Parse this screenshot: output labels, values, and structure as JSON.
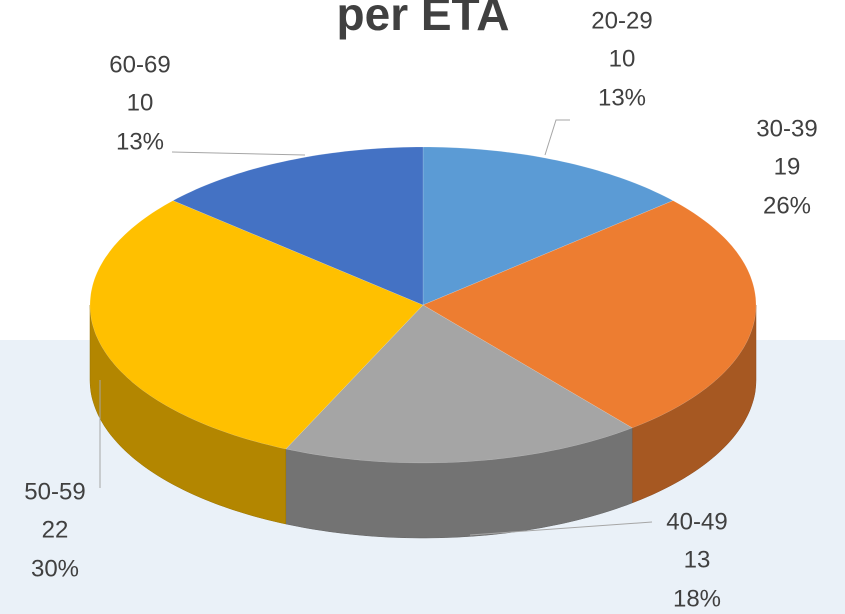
{
  "chart_data": {
    "type": "pie3d",
    "title": "per ETA",
    "categories": [
      "20-29",
      "30-39",
      "40-49",
      "50-59",
      "60-69"
    ],
    "values": [
      10,
      19,
      13,
      22,
      10
    ],
    "percent_labels": [
      "13%",
      "26%",
      "18%",
      "30%",
      "13%"
    ],
    "colors": [
      "#5b9bd5",
      "#ed7d31",
      "#a5a5a5",
      "#ffc000",
      "#4472c4"
    ]
  }
}
